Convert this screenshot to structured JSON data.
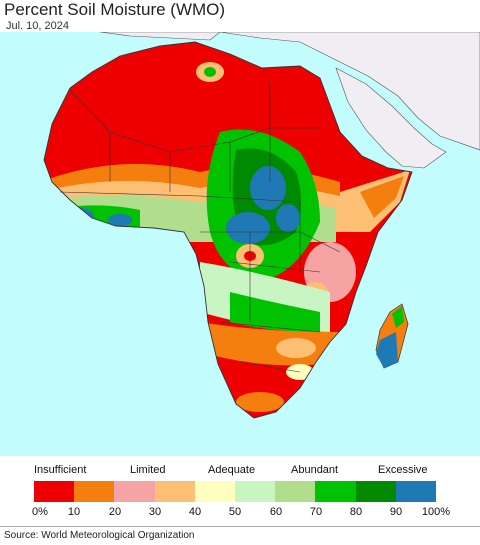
{
  "header": {
    "title": "Percent Soil Moisture (WMO)",
    "date": "Jul. 10, 2024"
  },
  "legend": {
    "categories": [
      "Insufficient",
      "Limited",
      "Adequate",
      "Abundant",
      "Excessive"
    ],
    "colors": [
      "#ee0000",
      "#f57f0e",
      "#f6a3a3",
      "#fcbf73",
      "#fefebe",
      "#c8f5c2",
      "#b1de8d",
      "#00c200",
      "#008a00",
      "#1e79b4"
    ],
    "ticks": [
      "0%",
      "10",
      "20",
      "30",
      "40",
      "50",
      "60",
      "70",
      "80",
      "90",
      "100%"
    ]
  },
  "map_colors": {
    "ocean": "#c3fcfc",
    "land_other": "#f1eef3",
    "border": "#333333"
  },
  "footer": {
    "source": "Source: World Meteorological Organization"
  }
}
